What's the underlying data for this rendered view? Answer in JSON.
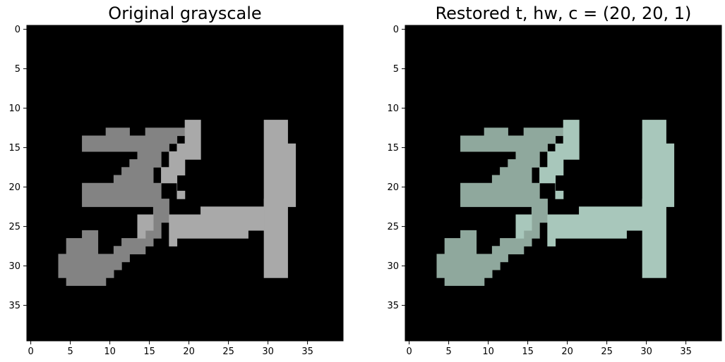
{
  "chart_data": [
    {
      "type": "heatmap",
      "title": "Original grayscale",
      "grid": false,
      "xlim": [
        -0.5,
        39.5
      ],
      "ylim": [
        39.5,
        -0.5
      ],
      "xticks": [
        0,
        5,
        10,
        15,
        20,
        25,
        30,
        35
      ],
      "yticks": [
        0,
        5,
        10,
        15,
        20,
        25,
        30,
        35
      ],
      "xtick_labels": [
        "0",
        "5",
        "10",
        "15",
        "20",
        "25",
        "30",
        "35"
      ],
      "ytick_labels": [
        "0",
        "5",
        "10",
        "15",
        "20",
        "25",
        "30",
        "35"
      ],
      "background_color": "#000000",
      "shapes": [
        {
          "name": "left-stroke",
          "color": "#838383",
          "points": [
            [
              6.5,
              13.5
            ],
            [
              9.5,
              13.5
            ],
            [
              9.5,
              12.5
            ],
            [
              12.5,
              12.5
            ],
            [
              12.5,
              13.5
            ],
            [
              14.5,
              13.5
            ],
            [
              14.5,
              12.5
            ],
            [
              19.5,
              12.5
            ],
            [
              19.5,
              13.5
            ],
            [
              18.5,
              13.5
            ],
            [
              18.5,
              14.5
            ],
            [
              17.5,
              14.5
            ],
            [
              17.5,
              15.5
            ],
            [
              16.5,
              15.5
            ],
            [
              16.5,
              17.5
            ],
            [
              15.5,
              17.5
            ],
            [
              15.5,
              19.5
            ],
            [
              16.5,
              19.5
            ],
            [
              16.5,
              21.5
            ],
            [
              17.5,
              21.5
            ],
            [
              17.5,
              24.5
            ],
            [
              16.5,
              24.5
            ],
            [
              16.5,
              26.5
            ],
            [
              15.5,
              26.5
            ],
            [
              15.5,
              27.5
            ],
            [
              14.5,
              27.5
            ],
            [
              14.5,
              28.5
            ],
            [
              12.5,
              28.5
            ],
            [
              12.5,
              29.5
            ],
            [
              11.5,
              29.5
            ],
            [
              11.5,
              30.5
            ],
            [
              10.5,
              30.5
            ],
            [
              10.5,
              31.5
            ],
            [
              9.5,
              31.5
            ],
            [
              9.5,
              32.5
            ],
            [
              4.5,
              32.5
            ],
            [
              4.5,
              31.5
            ],
            [
              3.5,
              31.5
            ],
            [
              3.5,
              28.5
            ],
            [
              4.5,
              28.5
            ],
            [
              4.5,
              26.5
            ],
            [
              6.5,
              26.5
            ],
            [
              6.5,
              25.5
            ],
            [
              8.5,
              25.5
            ],
            [
              8.5,
              28.5
            ],
            [
              10.5,
              28.5
            ],
            [
              10.5,
              27.5
            ],
            [
              11.5,
              27.5
            ],
            [
              11.5,
              26.5
            ],
            [
              13.5,
              26.5
            ],
            [
              13.5,
              25.5
            ],
            [
              14.5,
              25.5
            ],
            [
              14.5,
              24.5
            ],
            [
              15.5,
              24.5
            ],
            [
              15.5,
              22.5
            ],
            [
              6.5,
              22.5
            ],
            [
              6.5,
              19.5
            ],
            [
              10.5,
              19.5
            ],
            [
              10.5,
              18.5
            ],
            [
              11.5,
              18.5
            ],
            [
              11.5,
              17.5
            ],
            [
              12.5,
              17.5
            ],
            [
              12.5,
              16.5
            ],
            [
              13.5,
              16.5
            ],
            [
              13.5,
              15.5
            ],
            [
              6.5,
              15.5
            ]
          ]
        },
        {
          "name": "diagonal-stroke",
          "color": "#a9a9a9",
          "points": [
            [
              19.5,
              11.5
            ],
            [
              21.5,
              11.5
            ],
            [
              21.5,
              16.5
            ],
            [
              19.5,
              16.5
            ],
            [
              19.5,
              18.5
            ],
            [
              18.5,
              18.5
            ],
            [
              18.5,
              20.5
            ],
            [
              19.5,
              20.5
            ],
            [
              19.5,
              21.5
            ],
            [
              18.5,
              21.5
            ],
            [
              18.5,
              19.5
            ],
            [
              16.5,
              19.5
            ],
            [
              16.5,
              17.5
            ],
            [
              17.5,
              17.5
            ],
            [
              17.5,
              15.5
            ],
            [
              18.5,
              15.5
            ],
            [
              18.5,
              14.5
            ],
            [
              19.5,
              14.5
            ]
          ]
        },
        {
          "name": "bridge-stroke",
          "color": "#a9a9a9",
          "points": [
            [
              13.5,
              23.5
            ],
            [
              15.5,
              23.5
            ],
            [
              15.5,
              25.5
            ],
            [
              14.5,
              25.5
            ],
            [
              14.5,
              26.5
            ],
            [
              13.5,
              26.5
            ]
          ]
        },
        {
          "name": "horizontal-stroke",
          "color": "#a9a9a9",
          "points": [
            [
              17.5,
              23.5
            ],
            [
              21.5,
              23.5
            ],
            [
              21.5,
              22.5
            ],
            [
              29.5,
              22.5
            ],
            [
              29.5,
              21.5
            ],
            [
              30.5,
              21.5
            ],
            [
              30.5,
              25.5
            ],
            [
              27.5,
              25.5
            ],
            [
              27.5,
              26.5
            ],
            [
              18.5,
              26.5
            ],
            [
              18.5,
              27.5
            ],
            [
              17.5,
              27.5
            ]
          ]
        },
        {
          "name": "vertical-stroke",
          "color": "#a9a9a9",
          "points": [
            [
              29.5,
              11.5
            ],
            [
              32.5,
              11.5
            ],
            [
              32.5,
              14.5
            ],
            [
              33.5,
              14.5
            ],
            [
              33.5,
              22.5
            ],
            [
              32.5,
              22.5
            ],
            [
              32.5,
              31.5
            ],
            [
              29.5,
              31.5
            ]
          ]
        }
      ]
    },
    {
      "type": "heatmap",
      "title": "Restored t, hw, c = (20, 20, 1)",
      "grid": false,
      "xlim": [
        -0.5,
        39.5
      ],
      "ylim": [
        39.5,
        -0.5
      ],
      "xticks": [
        0,
        5,
        10,
        15,
        20,
        25,
        30,
        35
      ],
      "yticks": [
        0,
        5,
        10,
        15,
        20,
        25,
        30,
        35
      ],
      "xtick_labels": [
        "0",
        "5",
        "10",
        "15",
        "20",
        "25",
        "30",
        "35"
      ],
      "ytick_labels": [
        "0",
        "5",
        "10",
        "15",
        "20",
        "25",
        "30",
        "35"
      ],
      "background_color": "#000000",
      "shapes": [
        {
          "name": "left-stroke",
          "color": "#8fa89d",
          "points": [
            [
              6.5,
              13.5
            ],
            [
              9.5,
              13.5
            ],
            [
              9.5,
              12.5
            ],
            [
              12.5,
              12.5
            ],
            [
              12.5,
              13.5
            ],
            [
              14.5,
              13.5
            ],
            [
              14.5,
              12.5
            ],
            [
              19.5,
              12.5
            ],
            [
              19.5,
              13.5
            ],
            [
              18.5,
              13.5
            ],
            [
              18.5,
              14.5
            ],
            [
              17.5,
              14.5
            ],
            [
              17.5,
              15.5
            ],
            [
              16.5,
              15.5
            ],
            [
              16.5,
              17.5
            ],
            [
              15.5,
              17.5
            ],
            [
              15.5,
              19.5
            ],
            [
              16.5,
              19.5
            ],
            [
              16.5,
              21.5
            ],
            [
              17.5,
              21.5
            ],
            [
              17.5,
              24.5
            ],
            [
              16.5,
              24.5
            ],
            [
              16.5,
              26.5
            ],
            [
              15.5,
              26.5
            ],
            [
              15.5,
              27.5
            ],
            [
              14.5,
              27.5
            ],
            [
              14.5,
              28.5
            ],
            [
              12.5,
              28.5
            ],
            [
              12.5,
              29.5
            ],
            [
              11.5,
              29.5
            ],
            [
              11.5,
              30.5
            ],
            [
              10.5,
              30.5
            ],
            [
              10.5,
              31.5
            ],
            [
              9.5,
              31.5
            ],
            [
              9.5,
              32.5
            ],
            [
              4.5,
              32.5
            ],
            [
              4.5,
              31.5
            ],
            [
              3.5,
              31.5
            ],
            [
              3.5,
              28.5
            ],
            [
              4.5,
              28.5
            ],
            [
              4.5,
              26.5
            ],
            [
              6.5,
              26.5
            ],
            [
              6.5,
              25.5
            ],
            [
              8.5,
              25.5
            ],
            [
              8.5,
              28.5
            ],
            [
              10.5,
              28.5
            ],
            [
              10.5,
              27.5
            ],
            [
              11.5,
              27.5
            ],
            [
              11.5,
              26.5
            ],
            [
              13.5,
              26.5
            ],
            [
              13.5,
              25.5
            ],
            [
              14.5,
              25.5
            ],
            [
              14.5,
              24.5
            ],
            [
              15.5,
              24.5
            ],
            [
              15.5,
              22.5
            ],
            [
              6.5,
              22.5
            ],
            [
              6.5,
              19.5
            ],
            [
              10.5,
              19.5
            ],
            [
              10.5,
              18.5
            ],
            [
              11.5,
              18.5
            ],
            [
              11.5,
              17.5
            ],
            [
              12.5,
              17.5
            ],
            [
              12.5,
              16.5
            ],
            [
              13.5,
              16.5
            ],
            [
              13.5,
              15.5
            ],
            [
              6.5,
              15.5
            ]
          ]
        },
        {
          "name": "diagonal-stroke",
          "color": "#a8c7bb",
          "points": [
            [
              19.5,
              11.5
            ],
            [
              21.5,
              11.5
            ],
            [
              21.5,
              16.5
            ],
            [
              19.5,
              16.5
            ],
            [
              19.5,
              18.5
            ],
            [
              18.5,
              18.5
            ],
            [
              18.5,
              20.5
            ],
            [
              19.5,
              20.5
            ],
            [
              19.5,
              21.5
            ],
            [
              18.5,
              21.5
            ],
            [
              18.5,
              19.5
            ],
            [
              16.5,
              19.5
            ],
            [
              16.5,
              17.5
            ],
            [
              17.5,
              17.5
            ],
            [
              17.5,
              15.5
            ],
            [
              18.5,
              15.5
            ],
            [
              18.5,
              14.5
            ],
            [
              19.5,
              14.5
            ]
          ]
        },
        {
          "name": "bridge-stroke",
          "color": "#a8c7bb",
          "points": [
            [
              13.5,
              23.5
            ],
            [
              15.5,
              23.5
            ],
            [
              15.5,
              25.5
            ],
            [
              14.5,
              25.5
            ],
            [
              14.5,
              26.5
            ],
            [
              13.5,
              26.5
            ]
          ]
        },
        {
          "name": "horizontal-stroke",
          "color": "#a8c7bb",
          "points": [
            [
              17.5,
              23.5
            ],
            [
              21.5,
              23.5
            ],
            [
              21.5,
              22.5
            ],
            [
              29.5,
              22.5
            ],
            [
              29.5,
              21.5
            ],
            [
              30.5,
              21.5
            ],
            [
              30.5,
              25.5
            ],
            [
              27.5,
              25.5
            ],
            [
              27.5,
              26.5
            ],
            [
              18.5,
              26.5
            ],
            [
              18.5,
              27.5
            ],
            [
              17.5,
              27.5
            ]
          ]
        },
        {
          "name": "vertical-stroke",
          "color": "#a8c7bb",
          "points": [
            [
              29.5,
              11.5
            ],
            [
              32.5,
              11.5
            ],
            [
              32.5,
              14.5
            ],
            [
              33.5,
              14.5
            ],
            [
              33.5,
              22.5
            ],
            [
              32.5,
              22.5
            ],
            [
              32.5,
              31.5
            ],
            [
              29.5,
              31.5
            ]
          ]
        }
      ]
    }
  ]
}
